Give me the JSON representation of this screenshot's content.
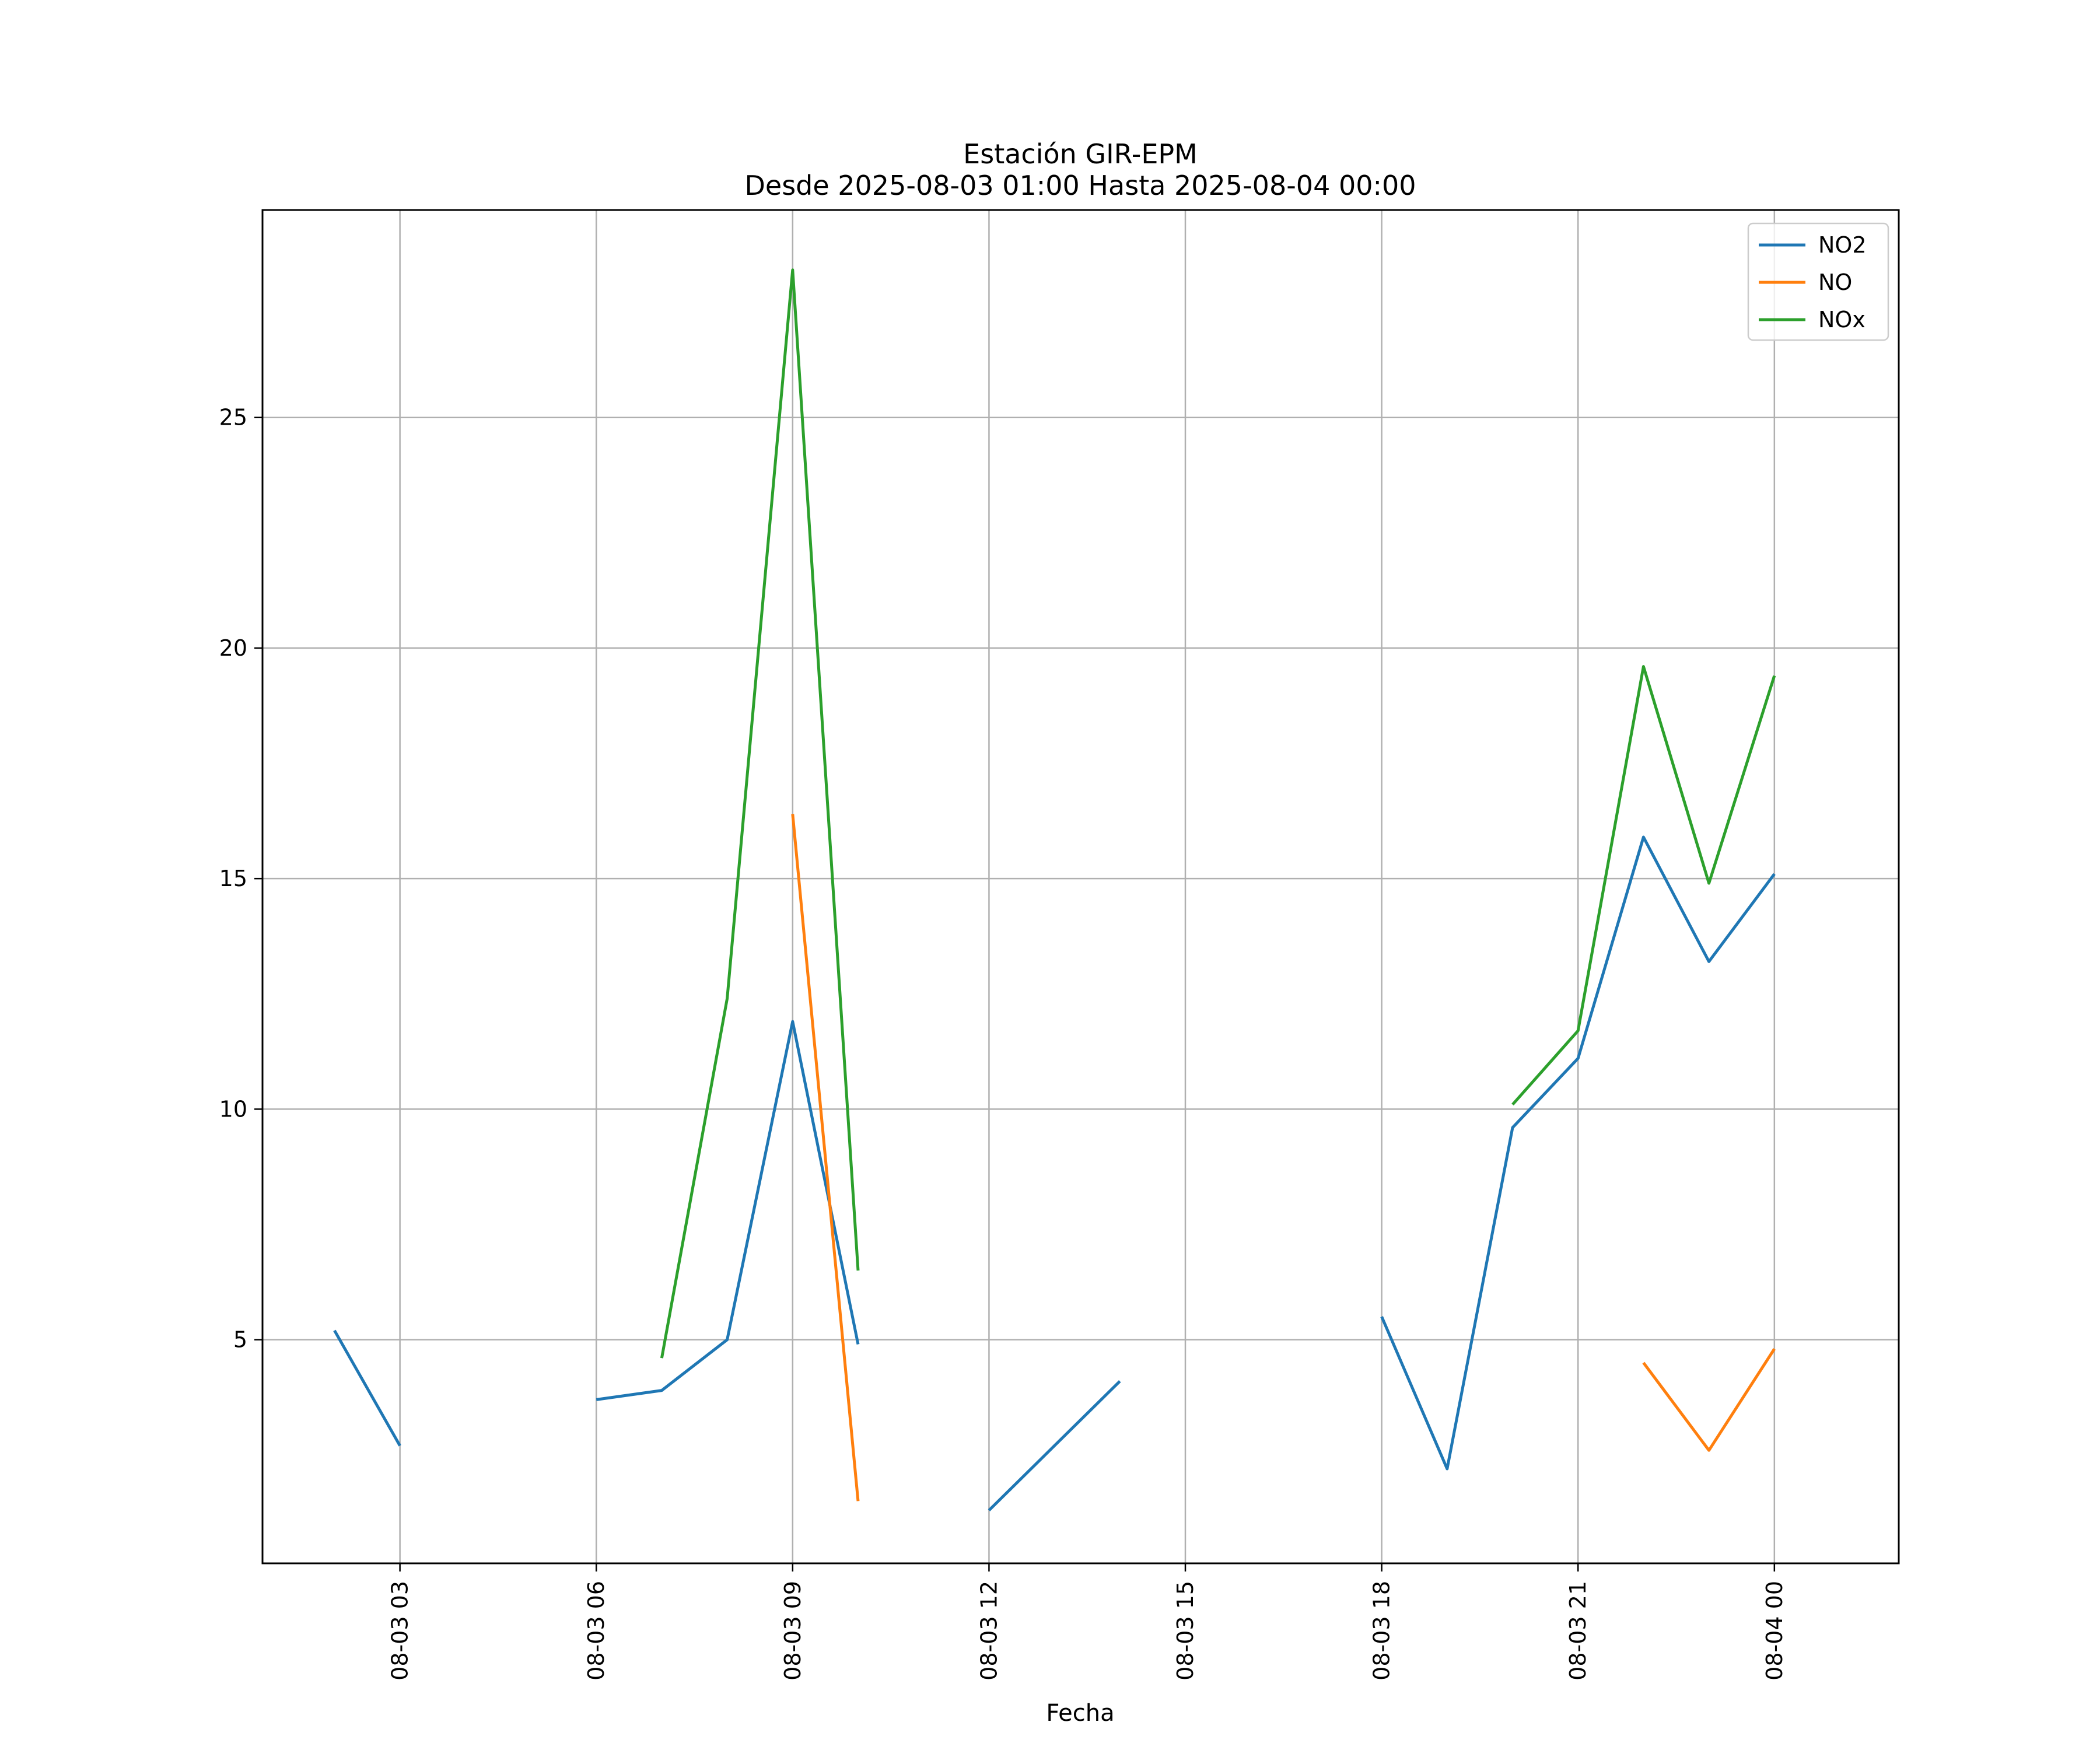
{
  "chart_data": {
    "type": "line",
    "title": "Estación GIR-EPM",
    "subtitle": "Desde 2025-08-03 01:00 Hasta 2025-08-04 00:00",
    "xlabel": "Fecha",
    "ylabel": "",
    "x": [
      "2025-08-03 01:00",
      "2025-08-03 02:00",
      "2025-08-03 03:00",
      "2025-08-03 04:00",
      "2025-08-03 05:00",
      "2025-08-03 06:00",
      "2025-08-03 07:00",
      "2025-08-03 08:00",
      "2025-08-03 09:00",
      "2025-08-03 10:00",
      "2025-08-03 11:00",
      "2025-08-03 12:00",
      "2025-08-03 13:00",
      "2025-08-03 14:00",
      "2025-08-03 15:00",
      "2025-08-03 16:00",
      "2025-08-03 17:00",
      "2025-08-03 18:00",
      "2025-08-03 19:00",
      "2025-08-03 20:00",
      "2025-08-03 21:00",
      "2025-08-03 22:00",
      "2025-08-03 23:00",
      "2025-08-04 00:00"
    ],
    "xlim": [
      "2025-08-03 00:54",
      "2025-08-04 01:54"
    ],
    "ylim": [
      0.15,
      29.5
    ],
    "xticks": [
      "2025-08-03 03:00",
      "2025-08-03 06:00",
      "2025-08-03 09:00",
      "2025-08-03 12:00",
      "2025-08-03 15:00",
      "2025-08-03 18:00",
      "2025-08-03 21:00",
      "2025-08-04 00:00"
    ],
    "xtick_labels": [
      "08-03 03",
      "08-03 06",
      "08-03 09",
      "08-03 12",
      "08-03 15",
      "08-03 18",
      "08-03 21",
      "08-04 00"
    ],
    "yticks": [
      5,
      10,
      15,
      20,
      25
    ],
    "ytick_labels": [
      "5",
      "10",
      "15",
      "20",
      "25"
    ],
    "grid": true,
    "legend_position": "top-right",
    "series": [
      {
        "name": "NO2",
        "color": "#1f77b4",
        "values": [
          null,
          5.2,
          2.7,
          null,
          null,
          3.7,
          3.9,
          5.0,
          11.9,
          4.9,
          null,
          1.3,
          2.7,
          4.1,
          null,
          null,
          null,
          5.5,
          2.2,
          9.6,
          11.1,
          15.9,
          13.2,
          15.1
        ]
      },
      {
        "name": "NO",
        "color": "#ff7f0e",
        "values": [
          null,
          null,
          null,
          null,
          null,
          null,
          null,
          null,
          16.4,
          1.5,
          null,
          null,
          null,
          null,
          null,
          null,
          null,
          null,
          null,
          null,
          null,
          4.5,
          2.6,
          4.8
        ]
      },
      {
        "name": "NOx",
        "color": "#2ca02c",
        "values": [
          null,
          null,
          null,
          null,
          null,
          null,
          4.6,
          12.4,
          28.2,
          6.5,
          null,
          null,
          null,
          null,
          null,
          null,
          null,
          null,
          null,
          10.1,
          11.7,
          19.6,
          14.9,
          19.4
        ]
      }
    ]
  }
}
